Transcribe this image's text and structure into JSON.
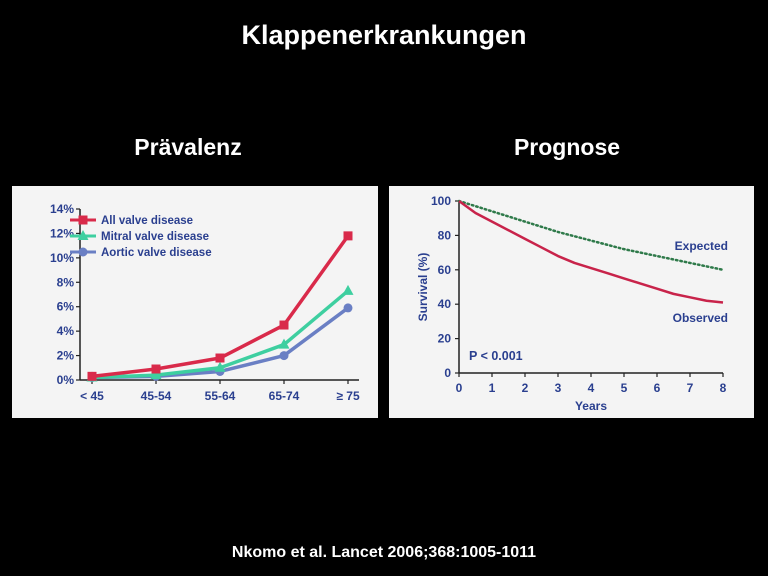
{
  "slide": {
    "title": "Klappenerkrankungen",
    "left_heading": "Prävalenz",
    "right_heading": "Prognose",
    "citation": "Nkomo et al. Lancet 2006;368:1005-1011"
  },
  "colors": {
    "background": "#000000",
    "panel": "#f4f4f4",
    "axis_text": "#2a3f8f",
    "all_valve": "#d92a4a",
    "mitral": "#3ecfa0",
    "aortic": "#6a7fc4",
    "observed": "#c8234a",
    "expected": "#2f7a4a"
  },
  "chart_data": [
    {
      "type": "line",
      "title": "",
      "xlabel": "",
      "ylabel": "",
      "categories": [
        "< 45",
        "45-54",
        "55-64",
        "65-74",
        "≥ 75"
      ],
      "y_ticks": [
        "0%",
        "2%",
        "4%",
        "6%",
        "8%",
        "10%",
        "12%",
        "14%"
      ],
      "ylim": [
        0,
        14
      ],
      "legend_position": "top-left",
      "grid": false,
      "series": [
        {
          "name": "All valve disease",
          "color": "#d92a4a",
          "marker": "square",
          "values": [
            0.3,
            0.9,
            1.8,
            4.5,
            11.8
          ]
        },
        {
          "name": "Mitral valve disease",
          "color": "#3ecfa0",
          "marker": "triangle",
          "values": [
            0.2,
            0.4,
            1.0,
            2.9,
            7.3
          ]
        },
        {
          "name": "Aortic valve disease",
          "color": "#6a7fc4",
          "marker": "circle",
          "values": [
            0.2,
            0.3,
            0.7,
            2.0,
            5.9
          ]
        }
      ]
    },
    {
      "type": "line",
      "title": "",
      "xlabel": "Years",
      "ylabel": "Survival (%)",
      "x_ticks": [
        0,
        1,
        2,
        3,
        4,
        5,
        6,
        7,
        8
      ],
      "y_ticks": [
        0,
        20,
        40,
        60,
        80,
        100
      ],
      "xlim": [
        0,
        8
      ],
      "ylim": [
        0,
        100
      ],
      "grid": false,
      "annotation": "P < 0.001",
      "series": [
        {
          "name": "Expected",
          "color": "#2f7a4a",
          "style": "dotted",
          "x": [
            0,
            1,
            2,
            3,
            4,
            5,
            6,
            7,
            8
          ],
          "values": [
            100,
            94,
            88,
            82,
            77,
            72,
            68,
            64,
            60
          ]
        },
        {
          "name": "Observed",
          "color": "#c8234a",
          "style": "solid",
          "x": [
            0,
            0.5,
            1,
            1.5,
            2,
            2.5,
            3,
            3.5,
            4,
            4.5,
            5,
            5.5,
            6,
            6.5,
            7,
            7.5,
            8
          ],
          "values": [
            100,
            93,
            88,
            83,
            78,
            73,
            68,
            64,
            61,
            58,
            55,
            52,
            49,
            46,
            44,
            42,
            41
          ]
        }
      ]
    }
  ]
}
